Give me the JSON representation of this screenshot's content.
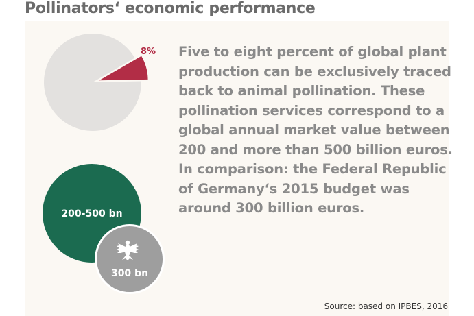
{
  "title": "Pollinators‘ economic performance",
  "description_lines": [
    "Five to eight percent of global plant",
    "production can be exclusively traced",
    "back to animal pollination. These",
    "pollination services correspond to a",
    "global annual market value between",
    "200 and more than 500 billion euros.",
    "In comparison: the Federal Republic",
    "of Germany‘s 2015 budget was",
    "around 300 billion euros."
  ],
  "source": "Source: based on IPBES, 2016",
  "colors": {
    "pie_base": "#e3e1df",
    "pie_slice": "#b22d46",
    "pollination_circle": "#1b6b50",
    "budget_circle": "#9e9e9e",
    "panel": "#fbf8f3",
    "text": "#8a8a8a"
  },
  "chart_data": [
    {
      "type": "pie",
      "title": "",
      "slices": [
        {
          "label": "8%",
          "value": 8,
          "exploded": true
        },
        {
          "label": "",
          "value": 92,
          "exploded": false
        }
      ]
    },
    {
      "type": "bubble",
      "title": "",
      "items": [
        {
          "label": "200-500 bn",
          "value_range": [
            200,
            500
          ],
          "representative_value": 500,
          "icon": "federal-eagle-icon"
        },
        {
          "label": "300 bn",
          "value": 300,
          "icon": "federal-eagle-icon"
        }
      ]
    }
  ]
}
